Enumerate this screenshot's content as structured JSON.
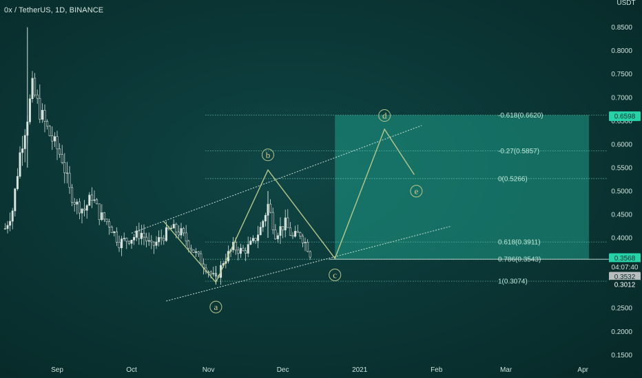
{
  "header": {
    "title": "0x / TetherUS, 1D, BINANCE",
    "unit": "USDT"
  },
  "colors": {
    "candle_up": "#d8e4de",
    "candle_down": "#d8e4de",
    "channel": "#cfe3dc",
    "wave": "#b9c78a",
    "fib": "#7fe0c3",
    "zone": "#1f9b86",
    "tag_green": "#26d3a8",
    "tag_dark": "#0b2e2c",
    "tag_gray": "#b8bcbc"
  },
  "price_tags": {
    "top": "0.6598",
    "mid": "0.3568",
    "timer": "04:07:40",
    "last": "0.3532",
    "low": "0.3012"
  },
  "chart_data": {
    "type": "candlestick",
    "title": "0x / TetherUS, 1D, BINANCE",
    "ylabel": "USDT",
    "y_ticks": [
      "0.8500",
      "0.8000",
      "0.7500",
      "0.7000",
      "0.6500",
      "0.6000",
      "0.5500",
      "0.5000",
      "0.4500",
      "0.4000",
      "0.3500",
      "0.3000",
      "0.2500",
      "0.2000",
      "0.1500"
    ],
    "y_tick_values": [
      0.85,
      0.8,
      0.75,
      0.7,
      0.65,
      0.6,
      0.55,
      0.5,
      0.45,
      0.4,
      0.35,
      0.3,
      0.25,
      0.2,
      0.15
    ],
    "ylim": [
      0.14,
      0.87
    ],
    "x_ticks": [
      {
        "label": "Sep",
        "date": "2020-09-01"
      },
      {
        "label": "Oct",
        "date": "2020-10-01"
      },
      {
        "label": "Nov",
        "date": "2020-11-01"
      },
      {
        "label": "Dec",
        "date": "2020-12-01"
      },
      {
        "label": "2021",
        "date": "2021-01-01"
      },
      {
        "label": "Feb",
        "date": "2021-02-01"
      },
      {
        "label": "Mar",
        "date": "2021-03-01"
      },
      {
        "label": "Apr",
        "date": "2021-04-01"
      }
    ],
    "price_path": [
      {
        "date": "2020-08-11",
        "price": 0.42
      },
      {
        "date": "2020-08-14",
        "price": 0.46
      },
      {
        "date": "2020-08-17",
        "price": 0.58
      },
      {
        "date": "2020-08-20",
        "price": 0.66
      },
      {
        "date": "2020-08-22",
        "price": 0.72
      },
      {
        "date": "2020-08-25",
        "price": 0.67
      },
      {
        "date": "2020-08-29",
        "price": 0.62
      },
      {
        "date": "2020-09-03",
        "price": 0.57
      },
      {
        "date": "2020-09-06",
        "price": 0.5
      },
      {
        "date": "2020-09-09",
        "price": 0.47
      },
      {
        "date": "2020-09-12",
        "price": 0.46
      },
      {
        "date": "2020-09-15",
        "price": 0.49
      },
      {
        "date": "2020-09-18",
        "price": 0.45
      },
      {
        "date": "2020-09-22",
        "price": 0.43
      },
      {
        "date": "2020-09-26",
        "price": 0.39
      },
      {
        "date": "2020-10-01",
        "price": 0.4
      },
      {
        "date": "2020-10-05",
        "price": 0.41
      },
      {
        "date": "2020-10-09",
        "price": 0.38
      },
      {
        "date": "2020-10-13",
        "price": 0.4
      },
      {
        "date": "2020-10-17",
        "price": 0.42
      },
      {
        "date": "2020-10-21",
        "price": 0.41
      },
      {
        "date": "2020-10-25",
        "price": 0.38
      },
      {
        "date": "2020-10-29",
        "price": 0.35
      },
      {
        "date": "2020-11-01",
        "price": 0.33
      },
      {
        "date": "2020-11-04",
        "price": 0.31
      },
      {
        "date": "2020-11-07",
        "price": 0.35
      },
      {
        "date": "2020-11-11",
        "price": 0.38
      },
      {
        "date": "2020-11-15",
        "price": 0.37
      },
      {
        "date": "2020-11-19",
        "price": 0.39
      },
      {
        "date": "2020-11-22",
        "price": 0.42
      },
      {
        "date": "2020-11-25",
        "price": 0.47
      },
      {
        "date": "2020-11-28",
        "price": 0.41
      },
      {
        "date": "2020-12-02",
        "price": 0.43
      },
      {
        "date": "2020-12-05",
        "price": 0.4
      },
      {
        "date": "2020-12-08",
        "price": 0.41
      },
      {
        "date": "2020-12-11",
        "price": 0.38
      },
      {
        "date": "2020-12-13",
        "price": 0.3532
      }
    ],
    "wicks": [
      {
        "date": "2020-08-20",
        "high": 0.85,
        "low": 0.55
      },
      {
        "date": "2020-11-04",
        "high": 0.34,
        "low": 0.3
      },
      {
        "date": "2020-11-25",
        "high": 0.5,
        "low": 0.4
      }
    ],
    "fib_levels": [
      {
        "label": "-0.618(0.6620)",
        "value": 0.662
      },
      {
        "label": "-0.27(0.5857)",
        "value": 0.5857
      },
      {
        "label": "0(0.5266)",
        "value": 0.5266
      },
      {
        "label": "0.618(0.3911)",
        "value": 0.3911
      },
      {
        "label": "0.786(0.3543)",
        "value": 0.3543
      },
      {
        "label": "1(0.3074)",
        "value": 0.3074
      }
    ],
    "target_zone": {
      "from_date": "2020-12-22",
      "to_date": "2021-04-01",
      "low": 0.3543,
      "high": 0.662
    },
    "wave_points": [
      {
        "label": "",
        "date": "2020-10-14",
        "price": 0.435
      },
      {
        "label": "a",
        "date": "2020-11-04",
        "price": 0.305
      },
      {
        "label": "b",
        "date": "2020-11-25",
        "price": 0.545
      },
      {
        "label": "c",
        "date": "2020-12-22",
        "price": 0.356
      },
      {
        "label": "d",
        "date": "2021-01-11",
        "price": 0.632
      },
      {
        "label": "e",
        "date": "2021-01-23",
        "price": 0.535
      }
    ],
    "channel_upper": [
      {
        "date": "2020-10-01",
        "price": 0.41
      },
      {
        "date": "2021-01-26",
        "price": 0.64
      }
    ],
    "channel_lower": [
      {
        "date": "2020-10-15",
        "price": 0.265
      },
      {
        "date": "2021-02-07",
        "price": 0.425
      }
    ]
  }
}
